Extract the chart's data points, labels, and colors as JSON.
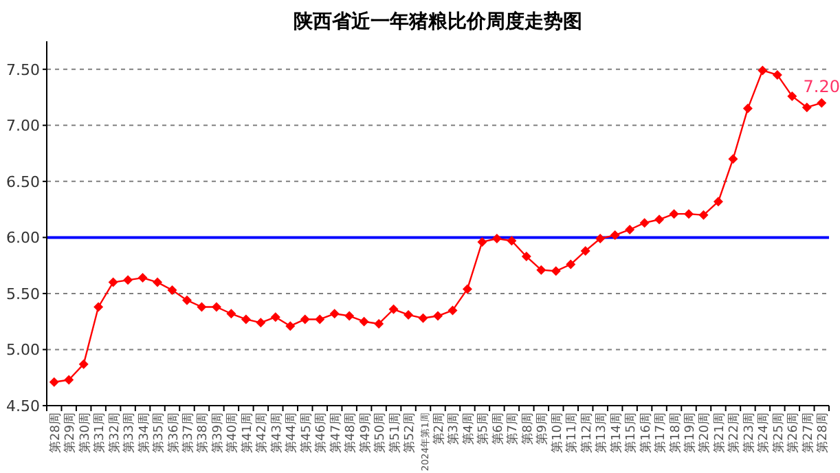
{
  "chart_data": {
    "type": "line",
    "title": "陕西省近一年猪粮比价周度走势图",
    "categories": [
      "第28周",
      "第29周",
      "第30周",
      "第31周",
      "第32周",
      "第33周",
      "第34周",
      "第35周",
      "第36周",
      "第37周",
      "第38周",
      "第39周",
      "第40周",
      "第41周",
      "第42周",
      "第43周",
      "第44周",
      "第45周",
      "第46周",
      "第47周",
      "第48周",
      "第49周",
      "第50周",
      "第51周",
      "第52周",
      "2024年第1周",
      "第2周",
      "第3周",
      "第4周",
      "第5周",
      "第6周",
      "第7周",
      "第8周",
      "第9周",
      "第10周",
      "第11周",
      "第12周",
      "第13周",
      "第14周",
      "第15周",
      "第16周",
      "第17周",
      "第18周",
      "第19周",
      "第20周",
      "第21周",
      "第22周",
      "第23周",
      "第24周",
      "第25周",
      "第26周",
      "第27周",
      "第28周"
    ],
    "series": [
      {
        "color": "#ff0000",
        "values": [
          4.71,
          4.73,
          4.87,
          5.38,
          5.6,
          5.62,
          5.64,
          5.6,
          5.53,
          5.44,
          5.38,
          5.38,
          5.32,
          5.27,
          5.24,
          5.29,
          5.21,
          5.27,
          5.27,
          5.32,
          5.3,
          5.25,
          5.23,
          5.36,
          5.31,
          5.28,
          5.3,
          5.35,
          5.54,
          5.96,
          5.99,
          5.97,
          5.83,
          5.71,
          5.7,
          5.76,
          5.88,
          5.99,
          6.02,
          6.07,
          6.13,
          6.16,
          6.21,
          6.21,
          6.2,
          6.32,
          6.7,
          7.15,
          7.49,
          7.45,
          7.26,
          7.16,
          7.2
        ],
        "value_labels": [
          null,
          null,
          null,
          null,
          null,
          null,
          null,
          null,
          null,
          null,
          null,
          null,
          null,
          null,
          null,
          null,
          null,
          null,
          null,
          null,
          null,
          null,
          null,
          null,
          null,
          null,
          null,
          null,
          null,
          null,
          null,
          null,
          null,
          null,
          null,
          null,
          null,
          null,
          null,
          null,
          null,
          null,
          null,
          null,
          null,
          null,
          null,
          null,
          null,
          null,
          null,
          null,
          "7.20"
        ]
      }
    ],
    "ylim": [
      4.5,
      7.75
    ],
    "yticks": [
      {
        "value": 4.5,
        "label": "4.50"
      },
      {
        "value": 5,
        "label": "5.00"
      },
      {
        "value": 5.5,
        "label": "5.50"
      },
      {
        "value": 6,
        "label": "6.00"
      },
      {
        "value": 6.5,
        "label": "6.50"
      },
      {
        "value": 7,
        "label": "7.00"
      },
      {
        "value": 7.5,
        "label": "7.50"
      }
    ],
    "ref_lines": [
      {
        "axis": "y",
        "value": 6,
        "color": "#0000ff",
        "line_style": "solid"
      }
    ],
    "grid": "y",
    "marker": "diamond",
    "line_style": "solid"
  }
}
